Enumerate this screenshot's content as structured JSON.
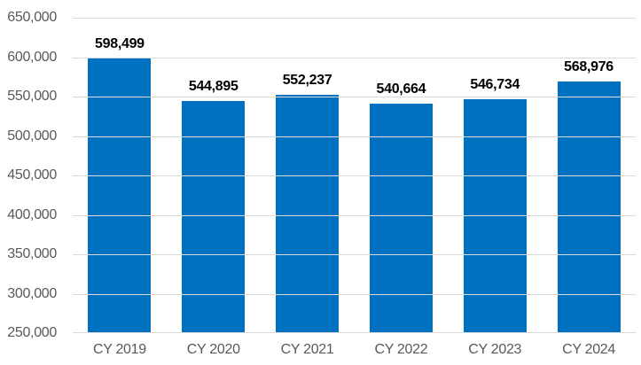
{
  "chart_data": {
    "type": "bar",
    "title": "",
    "xlabel": "",
    "ylabel": "",
    "categories": [
      "CY 2019",
      "CY 2020",
      "CY 2021",
      "CY 2022",
      "CY 2023",
      "CY 2024"
    ],
    "values": [
      598499,
      544895,
      552237,
      540664,
      546734,
      568976
    ],
    "value_labels": [
      "598,499",
      "544,895",
      "552,237",
      "540,664",
      "546,734",
      "568,976"
    ],
    "ylim": [
      250000,
      650000
    ],
    "y_tick_interval": 50000,
    "y_tick_labels": [
      "650,000",
      "600,000",
      "550,000",
      "500,000",
      "450,000",
      "400,000",
      "350,000",
      "300,000",
      "250,000"
    ],
    "grid": true,
    "legend": false,
    "colors": {
      "bar": "#0070C0",
      "gridline": "#D9D9D9",
      "axis_text": "#595959",
      "data_label": "#000000",
      "background": "#FFFFFF"
    }
  }
}
